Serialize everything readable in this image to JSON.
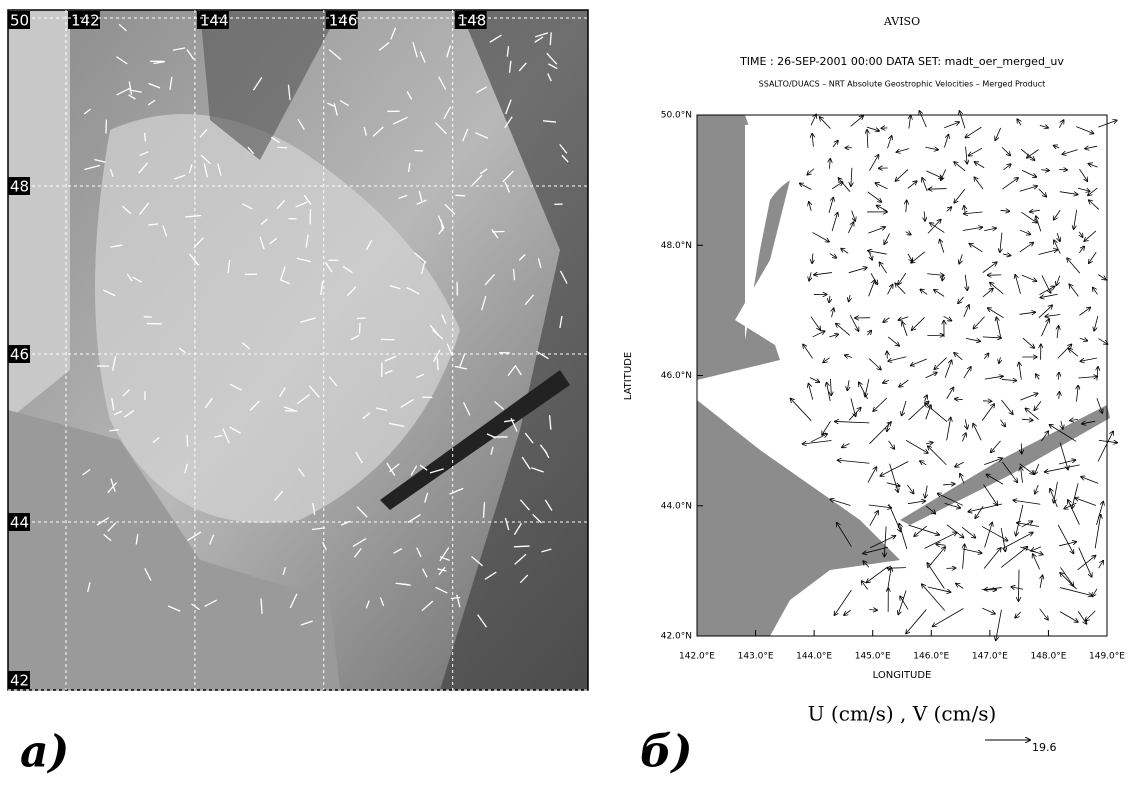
{
  "panel_a": {
    "label": "а)",
    "xticks": [
      142,
      144,
      146,
      148
    ],
    "yticks": [
      50,
      48,
      46,
      44,
      42
    ],
    "xlim": [
      141.1,
      150.1
    ],
    "ylim": [
      42,
      50
    ]
  },
  "panel_b": {
    "label": "б)",
    "title": "AVISO",
    "time_line": "TIME : 26-SEP-2001 00:00   DATA SET: madt_oer_merged_uv",
    "subtitle": "SSALTO/DUACS – NRT Absolute Geostrophic Velocities – Merged Product",
    "xlabel": "LONGITUDE",
    "ylabel": "LATITUDE",
    "units": "U (cm/s) , V (cm/s)",
    "scale_value": "19.6",
    "xlim": [
      142,
      149
    ],
    "ylim": [
      42,
      50
    ],
    "xticks": [
      {
        "value": 142,
        "label": "142.0°E"
      },
      {
        "value": 143,
        "label": "143.0°E"
      },
      {
        "value": 144,
        "label": "144.0°E"
      },
      {
        "value": 145,
        "label": "145.0°E"
      },
      {
        "value": 146,
        "label": "146.0°E"
      },
      {
        "value": 147,
        "label": "147.0°E"
      },
      {
        "value": 148,
        "label": "148.0°E"
      },
      {
        "value": 149,
        "label": "149.0°E"
      }
    ],
    "yticks": [
      {
        "value": 42,
        "label": "42.0°N"
      },
      {
        "value": 44,
        "label": "44.0°N"
      },
      {
        "value": 46,
        "label": "46.0°N"
      },
      {
        "value": 48,
        "label": "48.0°N"
      },
      {
        "value": 50,
        "label": "50.0°N"
      }
    ]
  }
}
